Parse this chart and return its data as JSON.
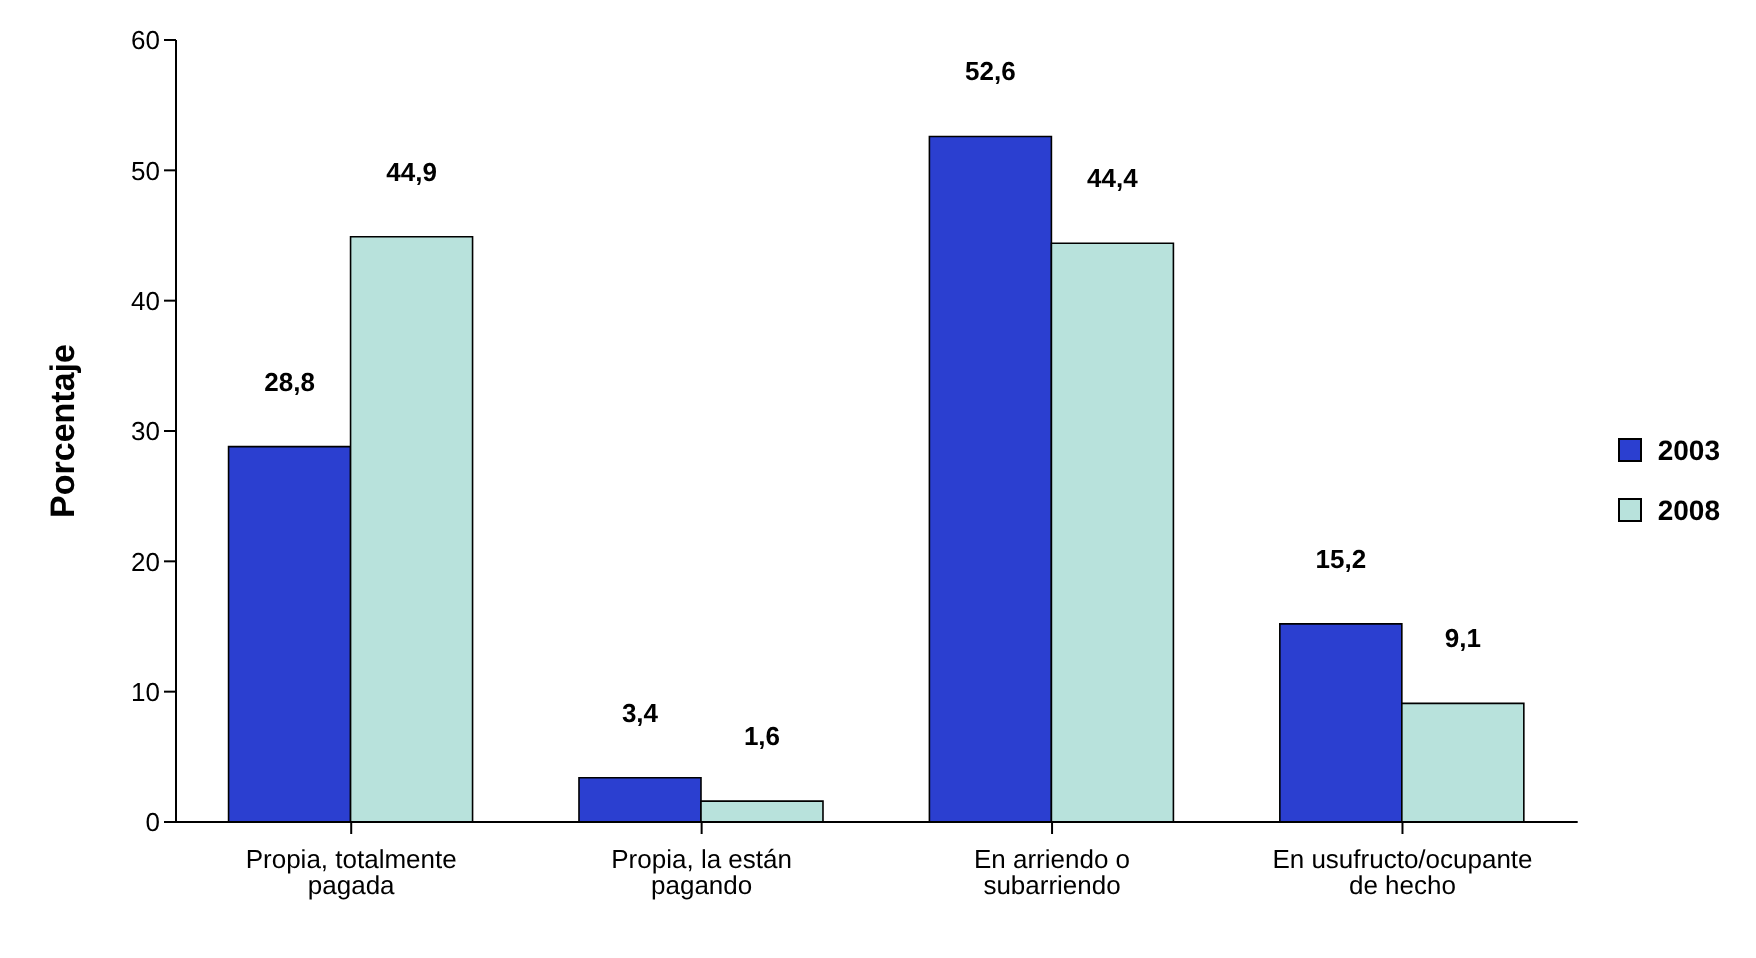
{
  "chart_data": {
    "type": "bar",
    "ylabel": "Porcentaje",
    "categories": [
      "Propia, totalmente pagada",
      "Propia, la están pagando",
      "En arriendo o subarriendo",
      "En usufructo/ocupante de hecho"
    ],
    "series": [
      {
        "name": "2003",
        "color": "#2b3fd0",
        "values": [
          28.8,
          3.4,
          52.6,
          15.2
        ],
        "value_labels": [
          "28,8",
          "3,4",
          "52,6",
          "15,2"
        ]
      },
      {
        "name": "2008",
        "color": "#b8e2dc",
        "values": [
          44.9,
          1.6,
          44.4,
          9.1
        ],
        "value_labels": [
          "44,9",
          "1,6",
          "44,4",
          "9,1"
        ]
      }
    ],
    "ylim": [
      0,
      60
    ],
    "yticks": [
      0,
      10,
      20,
      30,
      40,
      50,
      60
    ],
    "grid": false,
    "legend": "right"
  }
}
